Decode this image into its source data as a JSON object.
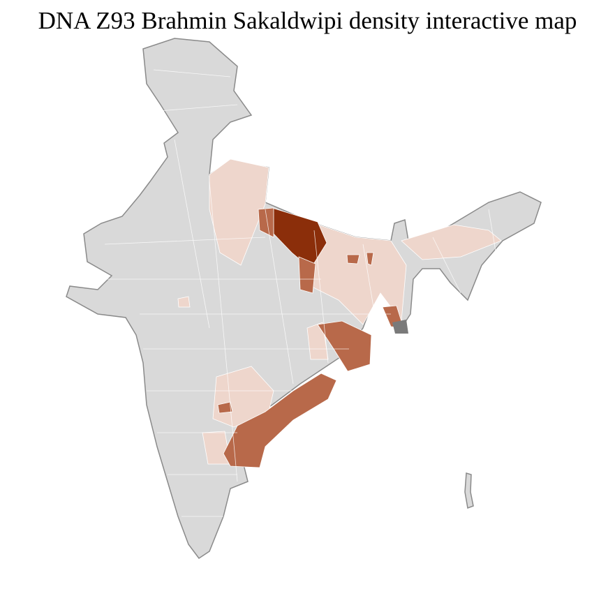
{
  "title": "DNA Z93 Brahmin Sakaldwipi density interactive map",
  "colors": {
    "no_data": "#d9d9d9",
    "low": "#eed6cc",
    "medium": "#b8694a",
    "high": "#8b2e0a",
    "border": "#8a8a8a",
    "district_border": "#ffffff"
  },
  "regions": [
    {
      "id": "west-uttar-pradesh-uttarakhand",
      "level": "low"
    },
    {
      "id": "bihar-jharkhand-west-bengal",
      "level": "low"
    },
    {
      "id": "assam-northeast",
      "level": "low"
    },
    {
      "id": "telangana",
      "level": "low"
    },
    {
      "id": "karnataka-east",
      "level": "low"
    },
    {
      "id": "chhattisgarh-east",
      "level": "low"
    },
    {
      "id": "madhya-pradesh-spot",
      "level": "low"
    },
    {
      "id": "eastern-uttar-pradesh",
      "level": "high"
    },
    {
      "id": "uttar-pradesh-west-cluster",
      "level": "medium"
    },
    {
      "id": "uttar-pradesh-south-cluster",
      "level": "medium"
    },
    {
      "id": "bihar-spot-1",
      "level": "medium"
    },
    {
      "id": "bihar-spot-2",
      "level": "medium"
    },
    {
      "id": "west-bengal-south",
      "level": "medium"
    },
    {
      "id": "odisha",
      "level": "medium"
    },
    {
      "id": "andhra-pradesh-coast",
      "level": "medium"
    },
    {
      "id": "telangana-spot",
      "level": "medium"
    }
  ]
}
